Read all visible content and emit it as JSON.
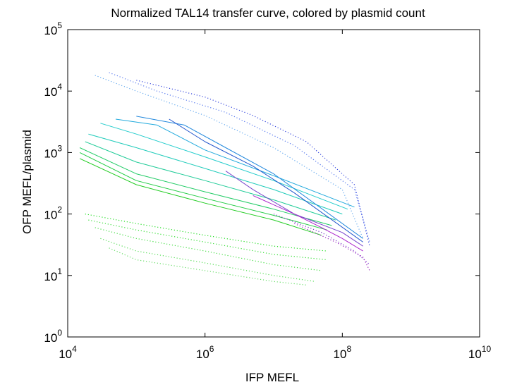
{
  "chart_data": {
    "type": "line",
    "title": "Normalized TAL14 transfer curve, colored by plasmid count",
    "xlabel": "IFP MEFL",
    "ylabel": "OFP MEFL/plasmid",
    "xscale": "log",
    "yscale": "log",
    "xlim": [
      10000,
      10000000000
    ],
    "ylim": [
      1,
      100000
    ],
    "x_ticks": [
      {
        "base": "10",
        "exp": "4",
        "value": 10000
      },
      {
        "base": "10",
        "exp": "6",
        "value": 1000000
      },
      {
        "base": "10",
        "exp": "8",
        "value": 100000000
      },
      {
        "base": "10",
        "exp": "10",
        "value": 10000000000
      }
    ],
    "y_ticks": [
      {
        "base": "10",
        "exp": "0",
        "value": 1
      },
      {
        "base": "10",
        "exp": "1",
        "value": 10
      },
      {
        "base": "10",
        "exp": "2",
        "value": 100
      },
      {
        "base": "10",
        "exp": "3",
        "value": 1000
      },
      {
        "base": "10",
        "exp": "4",
        "value": 10000
      },
      {
        "base": "10",
        "exp": "5",
        "value": 100000
      }
    ],
    "grid": false,
    "legend": "none",
    "colormap": "plasmid count: green (low) to cyan, blue, purple (high)",
    "series": [
      {
        "style": "dotted",
        "color": "#66dd66",
        "x": [
          40000,
          100000,
          1000000,
          10000000,
          30000000
        ],
        "y": [
          28,
          18,
          12,
          8,
          7
        ]
      },
      {
        "style": "dotted",
        "color": "#55dd55",
        "x": [
          30000,
          100000,
          1000000,
          10000000,
          40000000
        ],
        "y": [
          40,
          25,
          16,
          10,
          8
        ]
      },
      {
        "style": "dotted",
        "color": "#44dd44",
        "x": [
          25000,
          100000,
          1000000,
          10000000,
          50000000
        ],
        "y": [
          60,
          40,
          25,
          15,
          12
        ]
      },
      {
        "style": "dotted",
        "color": "#33dd33",
        "x": [
          20000,
          100000,
          1000000,
          10000000,
          60000000
        ],
        "y": [
          80,
          55,
          35,
          22,
          18
        ]
      },
      {
        "style": "dotted",
        "color": "#22dd22",
        "x": [
          18000,
          100000,
          1000000,
          10000000,
          60000000
        ],
        "y": [
          100,
          70,
          45,
          30,
          25
        ]
      },
      {
        "style": "solid",
        "color": "#22cc22",
        "x": [
          15000,
          100000,
          1000000,
          10000000,
          50000000
        ],
        "y": [
          800,
          300,
          150,
          80,
          45
        ]
      },
      {
        "style": "solid",
        "color": "#22cc44",
        "x": [
          15000,
          100000,
          1000000,
          10000000,
          60000000
        ],
        "y": [
          1000,
          350,
          180,
          95,
          55
        ]
      },
      {
        "style": "solid",
        "color": "#22cc66",
        "x": [
          15000,
          100000,
          1000000,
          10000000,
          70000000
        ],
        "y": [
          1200,
          450,
          230,
          120,
          65
        ]
      },
      {
        "style": "solid",
        "color": "#22cc99",
        "x": [
          18000,
          100000,
          1000000,
          10000000,
          80000000
        ],
        "y": [
          1500,
          700,
          350,
          170,
          80
        ]
      },
      {
        "style": "solid",
        "color": "#22ccbb",
        "x": [
          20000,
          100000,
          1000000,
          10000000,
          100000000
        ],
        "y": [
          2000,
          1200,
          550,
          250,
          100
        ]
      },
      {
        "style": "solid",
        "color": "#22cccc",
        "x": [
          30000,
          100000,
          1000000,
          10000000,
          120000000
        ],
        "y": [
          3000,
          2000,
          850,
          350,
          120
        ]
      },
      {
        "style": "solid",
        "color": "#22aadd",
        "x": [
          50000,
          200000,
          1000000,
          10000000,
          150000000
        ],
        "y": [
          3500,
          2800,
          1100,
          420,
          130
        ]
      },
      {
        "style": "solid",
        "color": "#2288dd",
        "x": [
          100000,
          500000,
          2000000,
          10000000,
          200000000
        ],
        "y": [
          3900,
          2800,
          1200,
          450,
          40
        ]
      },
      {
        "style": "solid",
        "color": "#2255cc",
        "x": [
          300000,
          1000000,
          5000000,
          20000000,
          200000000
        ],
        "y": [
          3500,
          1500,
          600,
          220,
          35
        ]
      },
      {
        "style": "solid",
        "color": "#7744cc",
        "x": [
          2000000,
          5000000,
          20000000,
          100000000,
          200000000
        ],
        "y": [
          500,
          250,
          100,
          50,
          30
        ]
      },
      {
        "style": "solid",
        "color": "#aa22cc",
        "x": [
          5000000,
          20000000,
          50000000,
          100000000,
          200000000
        ],
        "y": [
          200,
          100,
          60,
          40,
          25
        ]
      },
      {
        "style": "dotted",
        "color": "#66aaee",
        "x": [
          25000,
          100000,
          1000000,
          10000000,
          100000000,
          200000000
        ],
        "y": [
          18000,
          10000,
          4000,
          1200,
          250,
          40
        ]
      },
      {
        "style": "dotted",
        "color": "#5577ee",
        "x": [
          40000,
          200000,
          2000000,
          20000000,
          150000000,
          250000000
        ],
        "y": [
          20000,
          10000,
          4500,
          1300,
          250,
          35
        ]
      },
      {
        "style": "dotted",
        "color": "#3344dd",
        "x": [
          100000,
          1000000,
          5000000,
          30000000,
          150000000,
          250000000
        ],
        "y": [
          15000,
          8000,
          4000,
          1500,
          300,
          30
        ]
      },
      {
        "style": "dotted",
        "color": "#7733cc",
        "x": [
          10000000,
          50000000,
          150000000,
          250000000
        ],
        "y": [
          100,
          50,
          25,
          15
        ]
      },
      {
        "style": "dotted",
        "color": "#9922bb",
        "x": [
          20000000,
          80000000,
          200000000,
          250000000
        ],
        "y": [
          70,
          35,
          20,
          12
        ]
      }
    ]
  }
}
